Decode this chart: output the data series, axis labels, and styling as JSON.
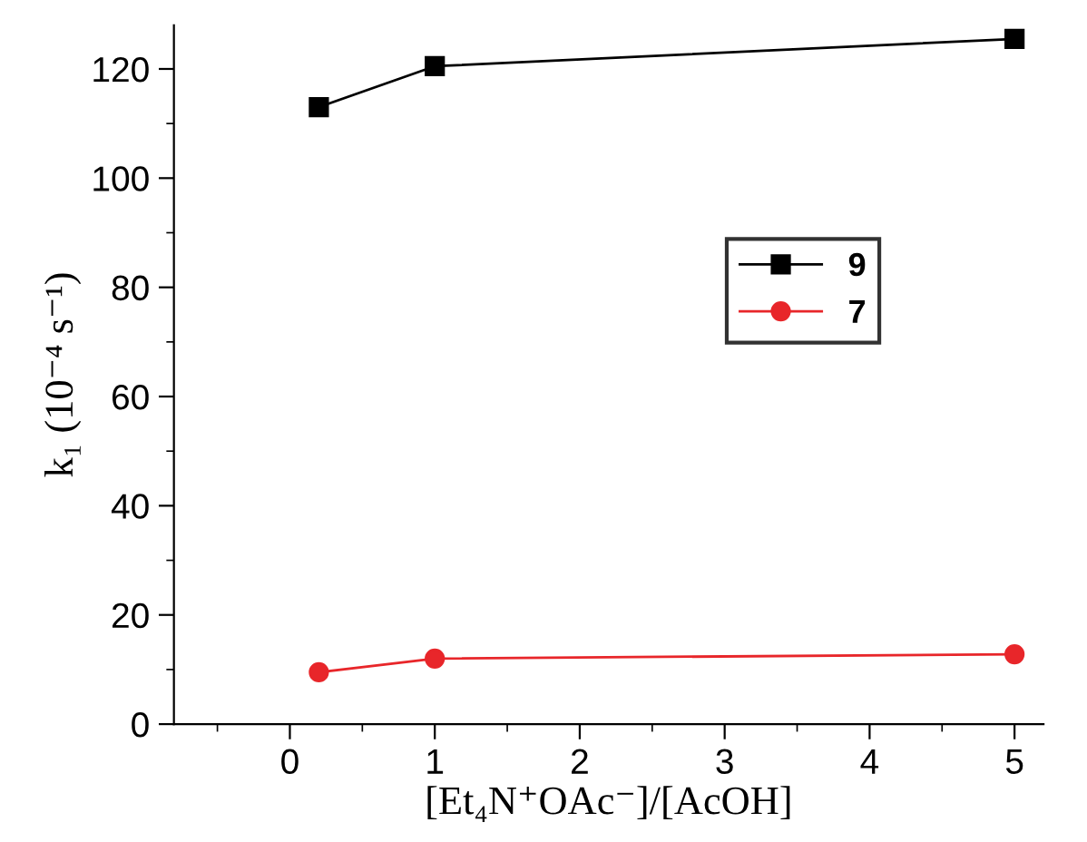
{
  "chart_data": {
    "type": "line",
    "xlabel": "[Et₄N⁺OAc⁻]/[AcOH]",
    "ylabel": "k₁ (10⁻⁴ s⁻¹)",
    "x": [
      0.2,
      1,
      5
    ],
    "series": [
      {
        "name": "9",
        "color": "#000000",
        "marker": "square",
        "values": [
          113,
          120.5,
          125.5
        ]
      },
      {
        "name": "7",
        "color": "#e8262a",
        "marker": "circle",
        "values": [
          9.5,
          12,
          12.8
        ]
      }
    ],
    "xlim": [
      -0.8,
      5.2
    ],
    "ylim": [
      0,
      128
    ],
    "xticks": [
      0,
      1,
      2,
      3,
      4,
      5
    ],
    "yticks": [
      0,
      20,
      40,
      60,
      80,
      100,
      120
    ],
    "legend": "right",
    "grid": false,
    "line_style": "solid"
  }
}
